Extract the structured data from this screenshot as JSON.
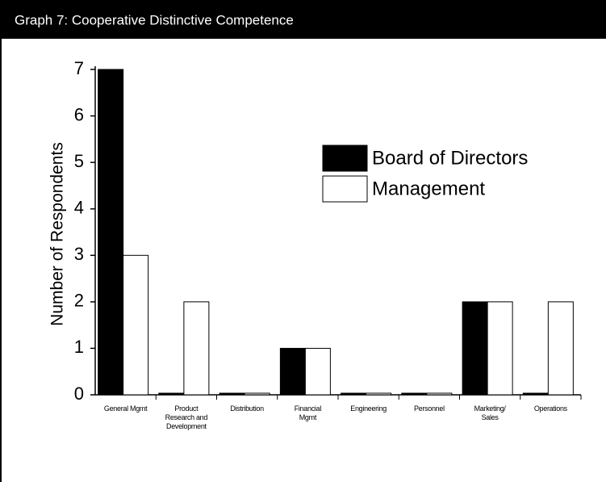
{
  "chart_data": {
    "type": "bar",
    "title": "Graph 7: Cooperative Distinctive Competence",
    "y_label": "Number of Respondents",
    "categories": [
      "General Mgmt",
      "Product Research and Development",
      "Distribution",
      "Financial Mgmt",
      "Engineering",
      "Personnel",
      "Marketing/ Sales",
      "Operations"
    ],
    "series": [
      {
        "name": "Board of Directors",
        "color": "#000000",
        "values": [
          7,
          0,
          0,
          1,
          0,
          0,
          2,
          0
        ]
      },
      {
        "name": "Management",
        "color": "#ffffff",
        "values": [
          3,
          2,
          0,
          1,
          0,
          0,
          2,
          2
        ]
      }
    ],
    "ylim": [
      0,
      7
    ],
    "yticks": [
      0,
      1,
      2,
      3,
      4,
      5,
      6,
      7
    ],
    "grid": false,
    "legend": "upper right"
  }
}
